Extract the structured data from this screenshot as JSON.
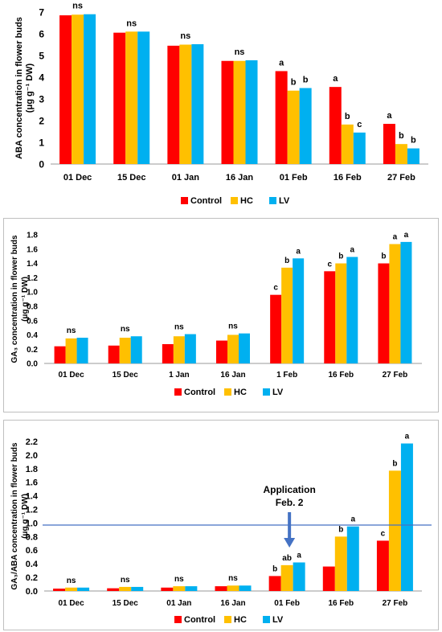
{
  "colors": {
    "control": "#ff0000",
    "hc": "#ffc000",
    "lv": "#00b0f0",
    "reference_line": "#4472c4",
    "application_arrow": "#4472c4"
  },
  "chart_data": [
    {
      "type": "bar",
      "ylabel": "ABA concentration in flower buds (μg g⁻¹ DW)",
      "ylabel_lines": [
        "ABA concentration in flower buds",
        "(μg g⁻¹ DW)"
      ],
      "ylim": [
        0,
        7
      ],
      "yticks": [
        "0",
        "1",
        "2",
        "3",
        "4",
        "5",
        "6",
        "7"
      ],
      "categories": [
        "01 Dec",
        "15 Dec",
        "01 Jan",
        "16 Jan",
        "01 Feb",
        "16 Feb",
        "27 Feb"
      ],
      "series": [
        {
          "name": "Control",
          "values": [
            6.85,
            6.05,
            5.45,
            4.75,
            4.28,
            3.55,
            1.85
          ]
        },
        {
          "name": "HC",
          "values": [
            6.88,
            6.1,
            5.5,
            4.75,
            3.38,
            1.82,
            0.92
          ]
        },
        {
          "name": "LV",
          "values": [
            6.9,
            6.1,
            5.52,
            4.78,
            3.5,
            1.45,
            0.72
          ]
        }
      ],
      "annotations": [
        {
          "category": 0,
          "series": "all",
          "text": "ns"
        },
        {
          "category": 1,
          "series": "all",
          "text": "ns"
        },
        {
          "category": 2,
          "series": "all",
          "text": "ns"
        },
        {
          "category": 3,
          "series": "all",
          "text": "ns"
        },
        {
          "category": 4,
          "series": 0,
          "text": "a"
        },
        {
          "category": 4,
          "series": 1,
          "text": "b"
        },
        {
          "category": 4,
          "series": 2,
          "text": "b"
        },
        {
          "category": 5,
          "series": 0,
          "text": "a"
        },
        {
          "category": 5,
          "series": 1,
          "text": "b"
        },
        {
          "category": 5,
          "series": 2,
          "text": "c"
        },
        {
          "category": 6,
          "series": 0,
          "text": "a"
        },
        {
          "category": 6,
          "series": 1,
          "text": "b"
        },
        {
          "category": 6,
          "series": 2,
          "text": "b"
        }
      ],
      "legend": [
        "Control",
        "HC",
        "LV"
      ],
      "legend_position": "bottom",
      "grid": false
    },
    {
      "type": "bar",
      "ylabel": "GA₃ concentration in flower buds (μg g⁻¹ DW)",
      "ylabel_lines": [
        "GA₃ concentration in flower buds",
        "(μg g⁻¹ DW)"
      ],
      "ylim": [
        0,
        1.8
      ],
      "yticks": [
        "0.0",
        "0.2",
        "0.4",
        "0.6",
        "0.8",
        "1.0",
        "1.2",
        "1.4",
        "1.6",
        "1.8"
      ],
      "categories": [
        "01 Dec",
        "15 Dec",
        "1 Jan",
        "16 Jan",
        "1 Feb",
        "16 Feb",
        "27 Feb"
      ],
      "series": [
        {
          "name": "Control",
          "values": [
            0.24,
            0.25,
            0.27,
            0.32,
            0.96,
            1.29,
            1.4
          ]
        },
        {
          "name": "HC",
          "values": [
            0.35,
            0.36,
            0.38,
            0.4,
            1.34,
            1.4,
            1.67
          ]
        },
        {
          "name": "LV",
          "values": [
            0.36,
            0.38,
            0.41,
            0.42,
            1.47,
            1.49,
            1.7
          ]
        }
      ],
      "annotations": [
        {
          "category": 0,
          "series": "all",
          "text": "ns"
        },
        {
          "category": 1,
          "series": "all",
          "text": "ns"
        },
        {
          "category": 2,
          "series": "all",
          "text": "ns"
        },
        {
          "category": 3,
          "series": "all",
          "text": "ns"
        },
        {
          "category": 4,
          "series": 0,
          "text": "c"
        },
        {
          "category": 4,
          "series": 1,
          "text": "b"
        },
        {
          "category": 4,
          "series": 2,
          "text": "a"
        },
        {
          "category": 5,
          "series": 0,
          "text": "c"
        },
        {
          "category": 5,
          "series": 1,
          "text": "b"
        },
        {
          "category": 5,
          "series": 2,
          "text": "a"
        },
        {
          "category": 6,
          "series": 0,
          "text": "b"
        },
        {
          "category": 6,
          "series": 1,
          "text": "a"
        },
        {
          "category": 6,
          "series": 2,
          "text": "a"
        }
      ],
      "legend": [
        "Control",
        "HC",
        "LV"
      ],
      "legend_position": "bottom",
      "grid": false
    },
    {
      "type": "bar",
      "ylabel": "GA₃/ABA concentration in flower buds (μg g⁻¹ DW)",
      "ylabel_lines": [
        "GA₃/ABA concentration in flower buds",
        "(μg g⁻¹ DW)"
      ],
      "ylim": [
        0,
        2.2
      ],
      "yticks": [
        "0.0",
        "0.2",
        "0.4",
        "0.6",
        "0.8",
        "1.0",
        "1.2",
        "1.4",
        "1.6",
        "1.8",
        "2.0",
        "2.2"
      ],
      "categories": [
        "01 Dec",
        "15 Dec",
        "01 Jan",
        "16 Jan",
        "01 Feb",
        "16 Feb",
        "27 Feb"
      ],
      "series": [
        {
          "name": "Control",
          "values": [
            0.035,
            0.04,
            0.05,
            0.07,
            0.22,
            0.36,
            0.74
          ]
        },
        {
          "name": "HC",
          "values": [
            0.05,
            0.06,
            0.07,
            0.08,
            0.38,
            0.8,
            1.77
          ]
        },
        {
          "name": "LV",
          "values": [
            0.05,
            0.06,
            0.07,
            0.08,
            0.42,
            0.95,
            2.17
          ]
        }
      ],
      "annotations": [
        {
          "category": 0,
          "series": "all",
          "text": "ns"
        },
        {
          "category": 1,
          "series": "all",
          "text": "ns"
        },
        {
          "category": 2,
          "series": "all",
          "text": "ns"
        },
        {
          "category": 3,
          "series": "all",
          "text": "ns"
        },
        {
          "category": 4,
          "series": 0,
          "text": "b"
        },
        {
          "category": 4,
          "series": 1,
          "text": "ab"
        },
        {
          "category": 4,
          "series": 2,
          "text": "a"
        },
        {
          "category": 5,
          "series": 1,
          "text": "b"
        },
        {
          "category": 5,
          "series": 2,
          "text": "a"
        },
        {
          "category": 6,
          "series": 0,
          "text": "c"
        },
        {
          "category": 6,
          "series": 1,
          "text": "b"
        },
        {
          "category": 6,
          "series": 2,
          "text": "a"
        }
      ],
      "reference_line": {
        "y": 0.97
      },
      "callout": {
        "lines": [
          "Application",
          "Feb. 2"
        ],
        "points_to_category": 4
      },
      "legend": [
        "Control",
        "HC",
        "LV"
      ],
      "legend_position": "bottom",
      "grid": false
    }
  ]
}
